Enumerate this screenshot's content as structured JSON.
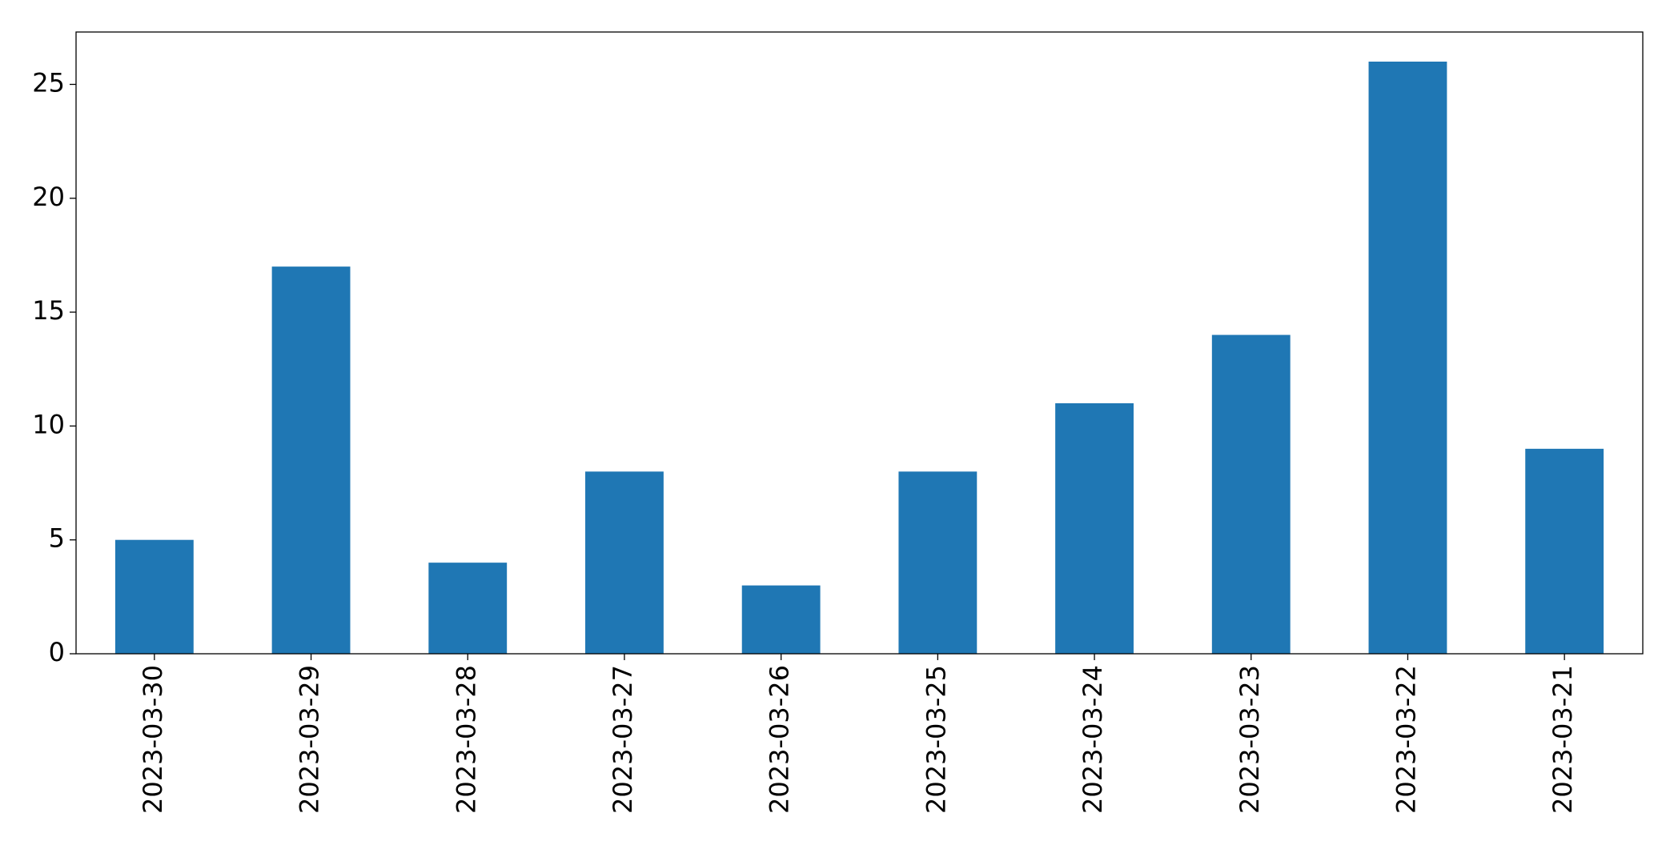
{
  "chart_data": {
    "type": "bar",
    "categories": [
      "2023-03-30",
      "2023-03-29",
      "2023-03-28",
      "2023-03-27",
      "2023-03-26",
      "2023-03-25",
      "2023-03-24",
      "2023-03-23",
      "2023-03-22",
      "2023-03-21"
    ],
    "values": [
      5,
      17,
      4,
      8,
      3,
      8,
      11,
      14,
      26,
      9
    ],
    "color": "#1f77b4",
    "ylim": [
      0,
      27.3
    ],
    "yticks": [
      0,
      5,
      10,
      15,
      20,
      25
    ],
    "grid": false
  }
}
